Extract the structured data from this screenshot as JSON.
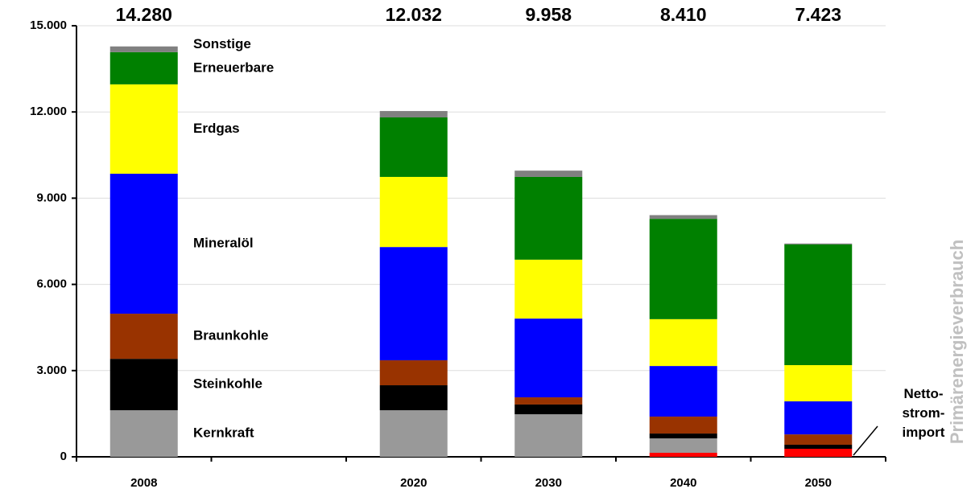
{
  "chart_data": {
    "type": "stacked-bar",
    "categories": [
      "2008",
      null,
      "2020",
      "2030",
      "2040",
      "2050"
    ],
    "series": [
      {
        "name": "Netto-\nstrom-\nimport",
        "color": "#ff0000",
        "values": [
          0,
          null,
          0,
          0,
          140,
          280
        ]
      },
      {
        "name": "Kernkraft",
        "color": "#999999",
        "values": [
          1620,
          null,
          1620,
          1480,
          500,
          0
        ]
      },
      {
        "name": "Steinkohle",
        "color": "#000000",
        "values": [
          1790,
          null,
          870,
          340,
          170,
          140
        ]
      },
      {
        "name": "Braunkohle",
        "color": "#993300",
        "values": [
          1570,
          null,
          870,
          250,
          590,
          360
        ]
      },
      {
        "name": "Mineralöl",
        "color": "#0000ff",
        "values": [
          4870,
          null,
          3940,
          2740,
          1760,
          1150
        ]
      },
      {
        "name": "Erdgas",
        "color": "#ffff00",
        "values": [
          3110,
          null,
          2440,
          2050,
          1630,
          1260
        ]
      },
      {
        "name": "Erneuerbare",
        "color": "#008000",
        "values": [
          1120,
          null,
          2070,
          2880,
          3490,
          4200
        ]
      },
      {
        "name": "Sonstige",
        "color": "#808080",
        "values": [
          200,
          null,
          222,
          218,
          130,
          33
        ]
      }
    ],
    "totals": {
      "values": [
        14280,
        null,
        12032,
        9958,
        8410,
        7423
      ],
      "value_labels": [
        "14.280",
        null,
        "12.032",
        "9.958",
        "8.410",
        "7.423"
      ]
    },
    "ylabel": "Primärenergieverbrauch",
    "ylim": [
      0,
      15000
    ],
    "yticks": [
      0,
      {
        "value": 3000,
        "label": "3.000"
      },
      {
        "value": 6000,
        "label": "6.000"
      },
      {
        "value": 9000,
        "label": "9.000"
      },
      {
        "value": 12000,
        "label": "12.000"
      },
      {
        "value": 15000,
        "label": "15.000"
      }
    ],
    "grid": true
  }
}
